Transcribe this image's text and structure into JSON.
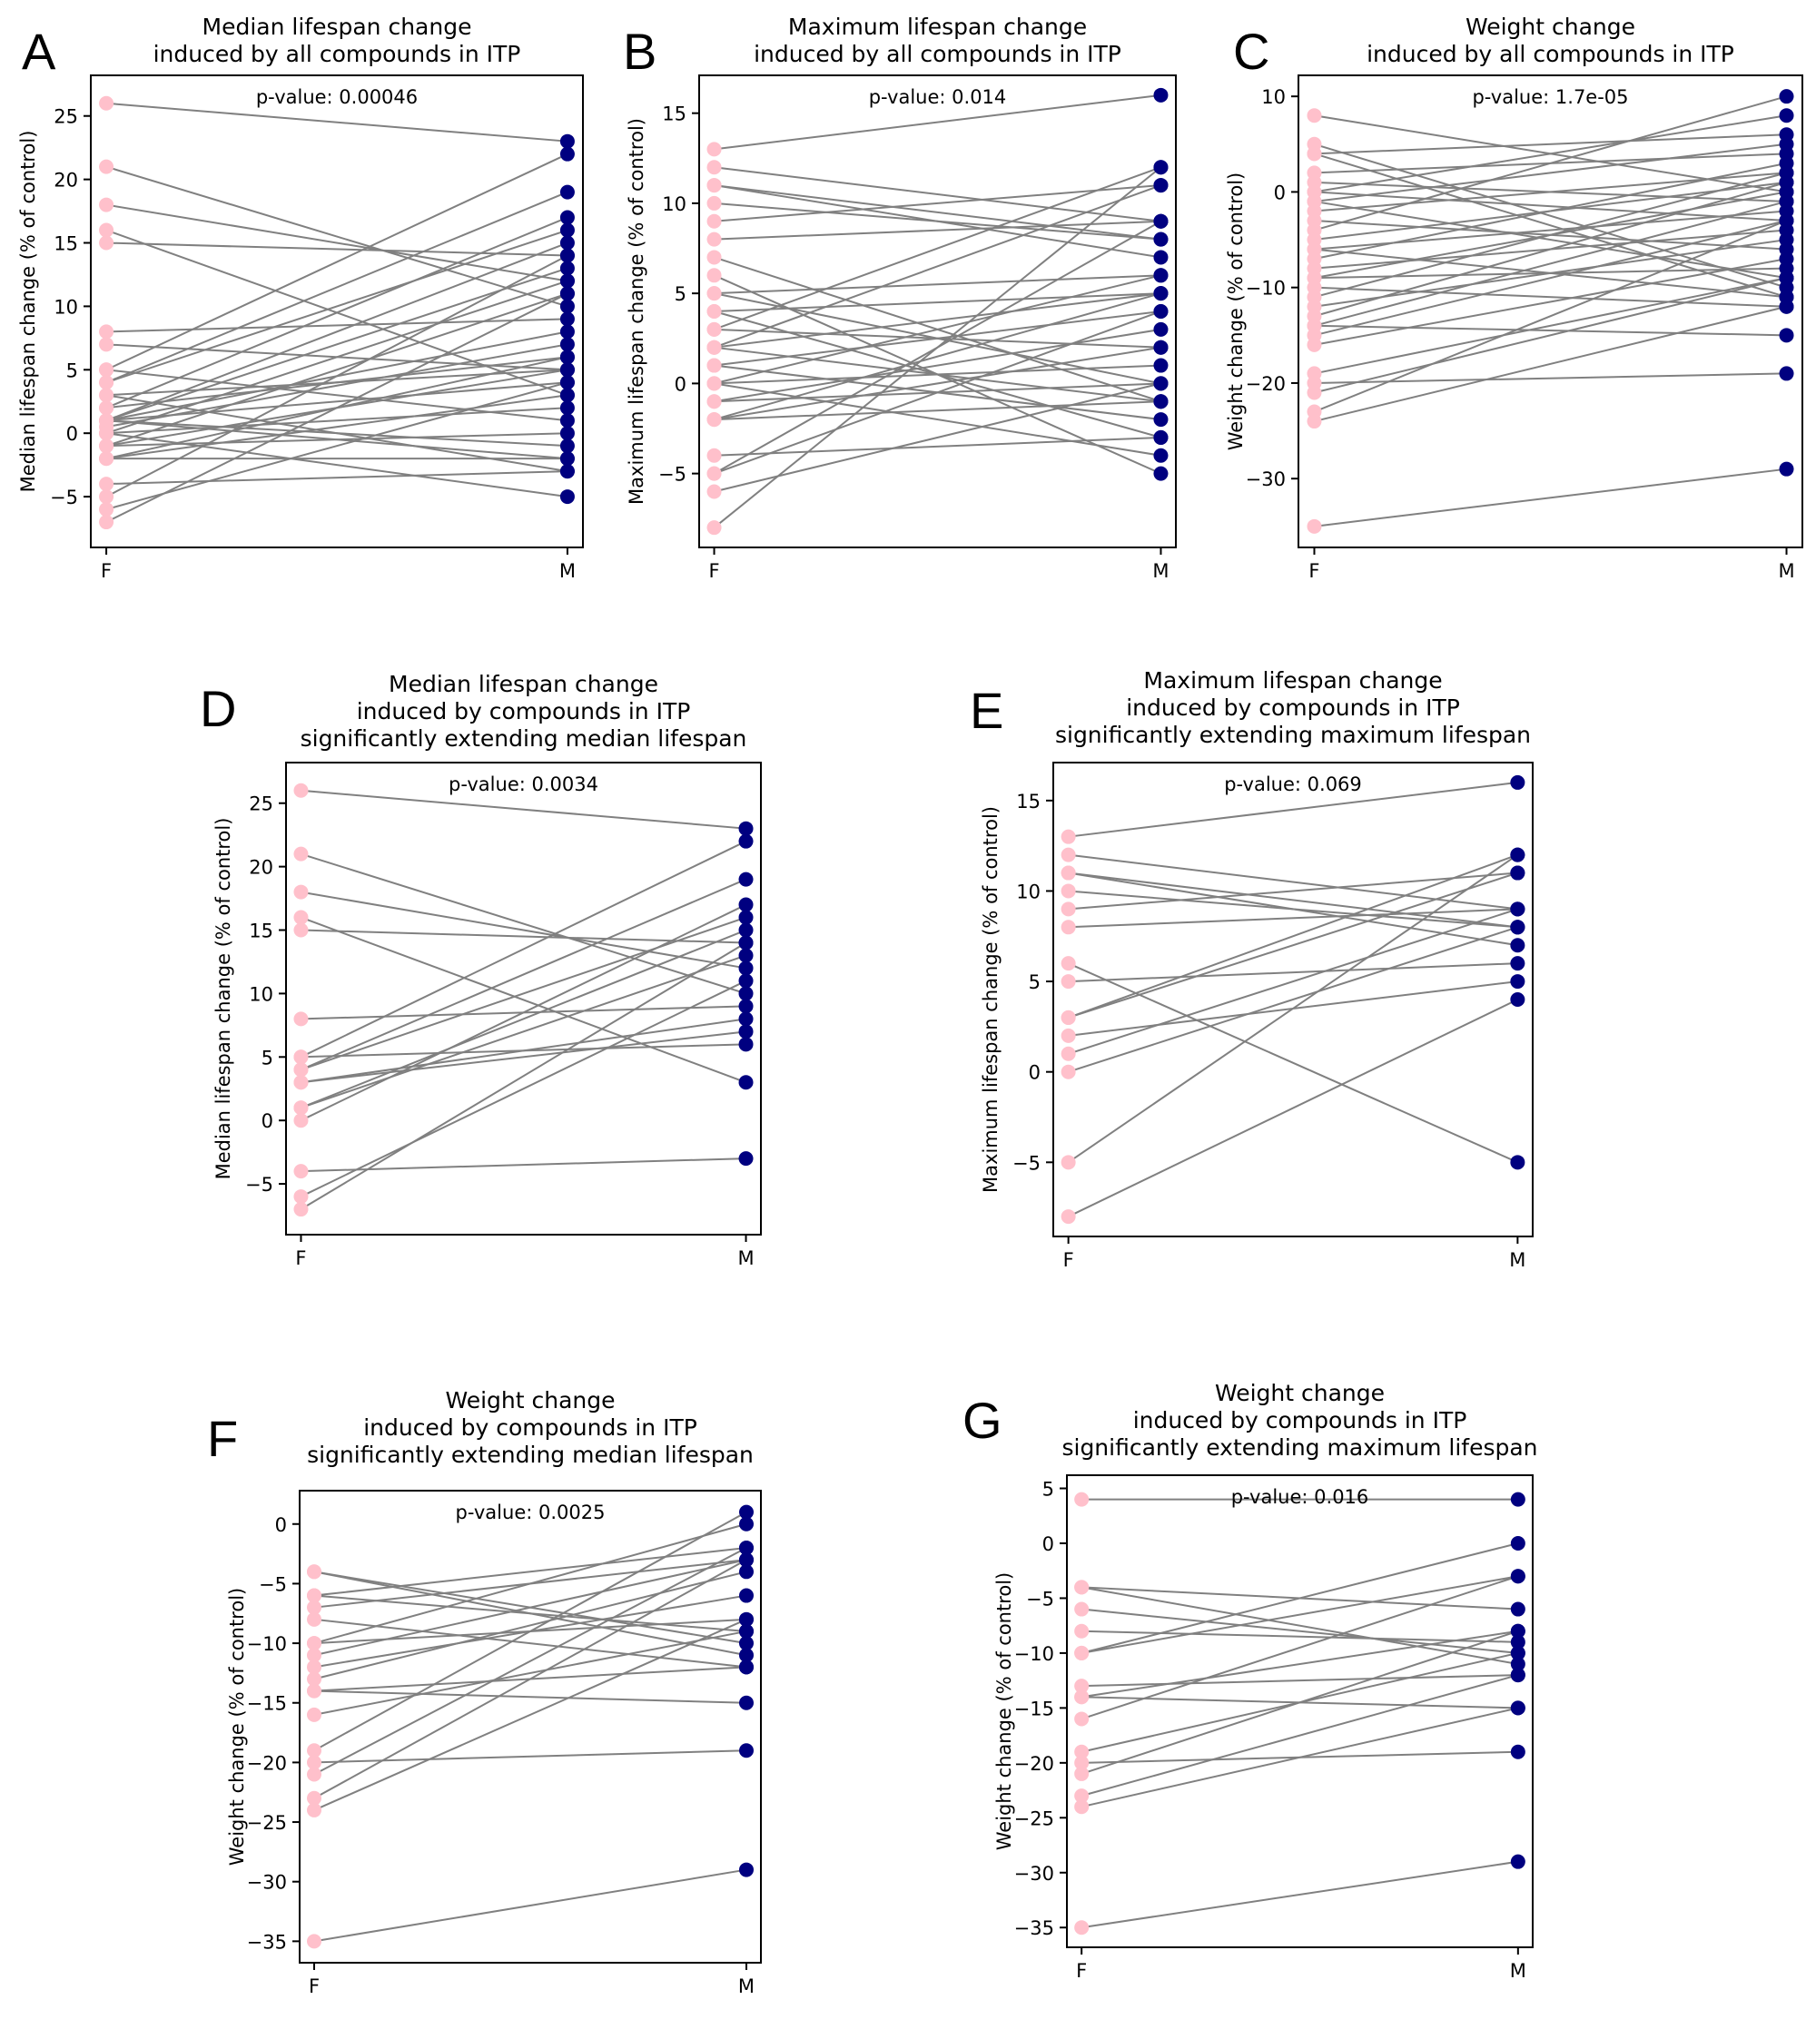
{
  "figure": {
    "colors": {
      "female": "#ffc0cb",
      "male": "#000080",
      "line": "#808080",
      "axes": "#000000"
    }
  },
  "chart_data": [
    {
      "panel": "A",
      "type": "line",
      "title": [
        "Median lifespan change",
        "induced by all compounds in ITP"
      ],
      "xlabel": "",
      "ylabel": "Median lifespan change (% of control)",
      "categories": [
        "F",
        "M"
      ],
      "ylim": [
        -9,
        28.2
      ],
      "yticks": [
        -5,
        0,
        5,
        10,
        15,
        20,
        25
      ],
      "annotation": "p-value: 0.00046",
      "pairs": [
        [
          26,
          23
        ],
        [
          21,
          10
        ],
        [
          18,
          12
        ],
        [
          16,
          3
        ],
        [
          15,
          14
        ],
        [
          8,
          9
        ],
        [
          7,
          5
        ],
        [
          5,
          22
        ],
        [
          5,
          1
        ],
        [
          4,
          19
        ],
        [
          4,
          16
        ],
        [
          3,
          5
        ],
        [
          3,
          -3
        ],
        [
          2,
          17
        ],
        [
          2,
          6
        ],
        [
          1,
          15
        ],
        [
          1,
          13
        ],
        [
          1,
          8
        ],
        [
          1,
          4
        ],
        [
          1,
          -1
        ],
        [
          1,
          -2
        ],
        [
          0.5,
          7
        ],
        [
          0,
          12
        ],
        [
          0,
          2
        ],
        [
          0,
          -5
        ],
        [
          -1,
          11
        ],
        [
          -1,
          5
        ],
        [
          -1,
          0
        ],
        [
          -2,
          6
        ],
        [
          -2,
          3
        ],
        [
          -2,
          -2
        ],
        [
          -4,
          -3
        ],
        [
          -5,
          14
        ],
        [
          -6,
          4
        ],
        [
          -7,
          11
        ]
      ]
    },
    {
      "panel": "B",
      "type": "line",
      "title": [
        "Maximum lifespan change",
        "induced by all compounds in ITP"
      ],
      "xlabel": "",
      "ylabel": "Maximum lifespan change (% of control)",
      "categories": [
        "F",
        "M"
      ],
      "ylim": [
        -9.1,
        17.1
      ],
      "yticks": [
        -5,
        0,
        5,
        10,
        15
      ],
      "annotation": "p-value: 0.014",
      "pairs": [
        [
          13,
          16
        ],
        [
          12,
          9
        ],
        [
          11,
          8
        ],
        [
          11,
          7
        ],
        [
          10,
          8
        ],
        [
          9,
          11
        ],
        [
          8,
          9
        ],
        [
          7,
          -1
        ],
        [
          6,
          -5
        ],
        [
          5,
          6
        ],
        [
          5,
          0
        ],
        [
          4,
          5
        ],
        [
          4,
          -3
        ],
        [
          3,
          12
        ],
        [
          3,
          2
        ],
        [
          2,
          11
        ],
        [
          2,
          5
        ],
        [
          2,
          -1
        ],
        [
          1,
          4
        ],
        [
          1,
          -2
        ],
        [
          0,
          6
        ],
        [
          0,
          1
        ],
        [
          0,
          -4
        ],
        [
          -1,
          3
        ],
        [
          -1,
          0
        ],
        [
          -2,
          5
        ],
        [
          -2,
          2
        ],
        [
          -2,
          -1
        ],
        [
          -4,
          -3
        ],
        [
          -5,
          9
        ],
        [
          -5,
          4
        ],
        [
          -6,
          0
        ],
        [
          -8,
          12
        ]
      ]
    },
    {
      "panel": "C",
      "type": "line",
      "title": [
        "Weight change",
        "induced by all compounds in ITP"
      ],
      "xlabel": "",
      "ylabel": "Weight change (% of control)",
      "categories": [
        "F",
        "M"
      ],
      "ylim": [
        -37.2,
        12.2
      ],
      "yticks": [
        -30,
        -20,
        -10,
        0,
        10
      ],
      "annotation": "p-value: 1.7e-05",
      "pairs": [
        [
          8,
          0
        ],
        [
          5,
          -10
        ],
        [
          4,
          6
        ],
        [
          4,
          -11
        ],
        [
          2,
          4
        ],
        [
          1,
          -1
        ],
        [
          0,
          8
        ],
        [
          0,
          -3
        ],
        [
          -1,
          5
        ],
        [
          -1,
          -9
        ],
        [
          -2,
          2
        ],
        [
          -3,
          -6
        ],
        [
          -4,
          10
        ],
        [
          -5,
          1
        ],
        [
          -6,
          -2
        ],
        [
          -6,
          -11
        ],
        [
          -7,
          3
        ],
        [
          -8,
          -4
        ],
        [
          -9,
          0
        ],
        [
          -9,
          -8
        ],
        [
          -10,
          -12
        ],
        [
          -11,
          2
        ],
        [
          -12,
          -5
        ],
        [
          -13,
          1
        ],
        [
          -14,
          -1
        ],
        [
          -14,
          -15
        ],
        [
          -15,
          -3
        ],
        [
          -16,
          -7
        ],
        [
          -19,
          -9
        ],
        [
          -20,
          -19
        ],
        [
          -21,
          -9
        ],
        [
          -23,
          -3
        ],
        [
          -24,
          -12
        ],
        [
          -35,
          -29
        ]
      ]
    },
    {
      "panel": "D",
      "type": "line",
      "title": [
        "Median lifespan change",
        "induced by compounds in ITP",
        "significantly extending median lifespan"
      ],
      "xlabel": "",
      "ylabel": "Median lifespan change (% of control)",
      "categories": [
        "F",
        "M"
      ],
      "ylim": [
        -9,
        28.2
      ],
      "yticks": [
        -5,
        0,
        5,
        10,
        15,
        20,
        25
      ],
      "annotation": "p-value: 0.0034",
      "pairs": [
        [
          26,
          23
        ],
        [
          21,
          10
        ],
        [
          18,
          12
        ],
        [
          16,
          3
        ],
        [
          15,
          14
        ],
        [
          8,
          9
        ],
        [
          5,
          22
        ],
        [
          5,
          6
        ],
        [
          4,
          19
        ],
        [
          4,
          16
        ],
        [
          3,
          7
        ],
        [
          3,
          8
        ],
        [
          1,
          15
        ],
        [
          1,
          13
        ],
        [
          0,
          17
        ],
        [
          -4,
          -3
        ],
        [
          -6,
          11
        ],
        [
          -7,
          14
        ]
      ]
    },
    {
      "panel": "E",
      "type": "line",
      "title": [
        "Maximum lifespan change",
        "induced by compounds in ITP",
        "significantly extending maximum lifespan"
      ],
      "xlabel": "",
      "ylabel": "Maximum lifespan change (% of control)",
      "categories": [
        "F",
        "M"
      ],
      "ylim": [
        -9.1,
        17.1
      ],
      "yticks": [
        -5,
        0,
        5,
        10,
        15
      ],
      "annotation": "p-value: 0.069",
      "pairs": [
        [
          13,
          16
        ],
        [
          12,
          9
        ],
        [
          11,
          8
        ],
        [
          11,
          7
        ],
        [
          10,
          8
        ],
        [
          9,
          11
        ],
        [
          8,
          9
        ],
        [
          6,
          -5
        ],
        [
          5,
          6
        ],
        [
          3,
          12
        ],
        [
          3,
          11
        ],
        [
          2,
          5
        ],
        [
          1,
          9
        ],
        [
          0,
          8
        ],
        [
          -5,
          12
        ],
        [
          -8,
          4
        ]
      ]
    },
    {
      "panel": "F",
      "type": "line",
      "title": [
        "Weight change",
        "induced by compounds in ITP",
        "significantly extending median lifespan"
      ],
      "xlabel": "",
      "ylabel": "Weight change (% of control)",
      "categories": [
        "F",
        "M"
      ],
      "ylim": [
        -36.8,
        2.8
      ],
      "yticks": [
        -35,
        -30,
        -25,
        -20,
        -15,
        -10,
        -5,
        0
      ],
      "annotation": "p-value: 0.0025",
      "pairs": [
        [
          -4,
          -10
        ],
        [
          -4,
          -11
        ],
        [
          -6,
          -2
        ],
        [
          -6,
          -9
        ],
        [
          -7,
          -3
        ],
        [
          -8,
          -12
        ],
        [
          -10,
          0
        ],
        [
          -10,
          -8
        ],
        [
          -11,
          -3
        ],
        [
          -12,
          -6
        ],
        [
          -13,
          -4
        ],
        [
          -14,
          -12
        ],
        [
          -14,
          -15
        ],
        [
          -16,
          -9
        ],
        [
          -19,
          1
        ],
        [
          -20,
          -19
        ],
        [
          -21,
          -2
        ],
        [
          -23,
          -3
        ],
        [
          -24,
          -8
        ],
        [
          -35,
          -29
        ]
      ]
    },
    {
      "panel": "G",
      "type": "line",
      "title": [
        "Weight change",
        "induced by compounds in ITP",
        "significantly extending maximum lifespan"
      ],
      "xlabel": "",
      "ylabel": "Weight change (% of control)",
      "categories": [
        "F",
        "M"
      ],
      "ylim": [
        -36.8,
        6.2
      ],
      "yticks": [
        -35,
        -30,
        -25,
        -20,
        -15,
        -10,
        -5,
        0,
        5
      ],
      "annotation": "p-value: 0.016",
      "pairs": [
        [
          4,
          4
        ],
        [
          -4,
          -6
        ],
        [
          -4,
          -11
        ],
        [
          -6,
          -10
        ],
        [
          -8,
          -9
        ],
        [
          -10,
          0
        ],
        [
          -10,
          -3
        ],
        [
          -13,
          -12
        ],
        [
          -14,
          -8
        ],
        [
          -14,
          -15
        ],
        [
          -16,
          -3
        ],
        [
          -19,
          -10
        ],
        [
          -20,
          -19
        ],
        [
          -21,
          -8
        ],
        [
          -23,
          -12
        ],
        [
          -24,
          -15
        ],
        [
          -35,
          -29
        ]
      ]
    }
  ]
}
